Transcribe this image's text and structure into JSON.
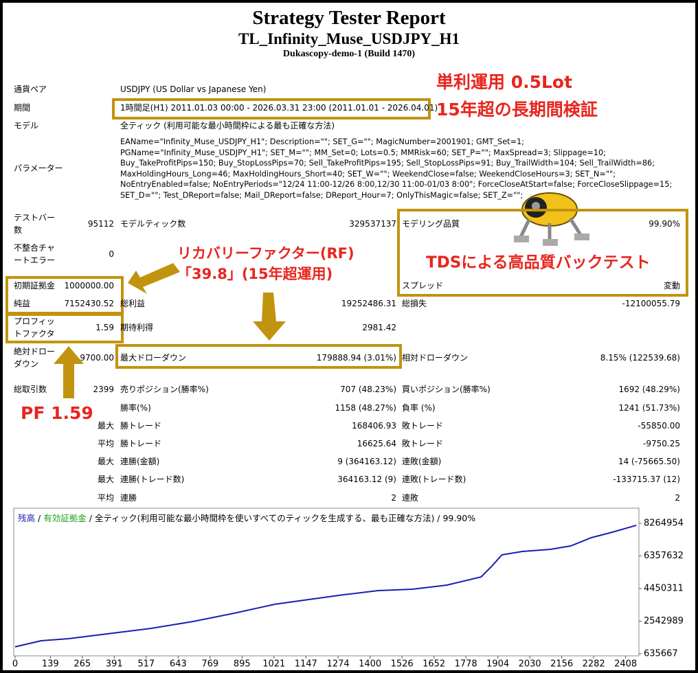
{
  "header": {
    "title": "Strategy Tester Report",
    "subtitle": "TL_Infinity_Muse_USDJPY_H1",
    "server": "Dukascopy-demo-1 (Build 1470)"
  },
  "report": {
    "rows": [
      {
        "label": "通貨ペア",
        "label2": "USDJPY (US Dollar vs Japanese Yen)"
      },
      {
        "label": "期間",
        "label2": "1時間足(H1) 2011.01.03 00:00 - 2026.03.31 23:00 (2011.01.01 - 2026.04.01)"
      },
      {
        "label": "モデル",
        "label2": "全ティック (利用可能な最小時間枠による最も正確な方法)"
      },
      {
        "label": "テストバー数",
        "value": "95112",
        "label2": "モデルティック数",
        "value2": "329537137",
        "label3": "モデリング品質",
        "value3": "99.90%"
      },
      {
        "label": "不整合チャートエラー",
        "value": "0"
      },
      {
        "label": "初期証拠金",
        "value": "1000000.00",
        "label3": "スプレッド",
        "value3": "変動"
      },
      {
        "label": "純益",
        "value": "7152430.52",
        "label2": "総利益",
        "value2": "19252486.31",
        "label3": "総損失",
        "value3": "-12100055.79"
      },
      {
        "label": "プロフィットファクタ",
        "value": "1.59",
        "label2": "期待利得",
        "value2": "2981.42"
      },
      {
        "label": "絶対ドローダウン",
        "value": "9700.00",
        "label2": "最大ドローダウン",
        "value2": "179888.94 (3.01%)",
        "label3": "相対ドローダウン",
        "value3": "8.15% (122539.68)"
      },
      {
        "label": "総取引数",
        "value": "2399",
        "label2": "売りポジション(勝率%)",
        "value2": "707 (48.23%)",
        "label3": "買いポジション(勝率%)",
        "value3": "1692 (48.29%)"
      },
      {
        "label2": "勝率(%)",
        "value2": "1158 (48.27%)",
        "label3": "負率 (%)",
        "value3": "1241 (51.73%)"
      },
      {
        "value": "最大",
        "label2": "勝トレード",
        "value2": "168406.93",
        "label3": "敗トレード",
        "value3": "-55850.00"
      },
      {
        "value": "平均",
        "label2": "勝トレード",
        "value2": "16625.64",
        "label3": "敗トレード",
        "value3": "-9750.25"
      },
      {
        "value": "最大",
        "label2": "連勝(金額)",
        "value2": "9 (364163.12)",
        "label3": "連敗(金額)",
        "value3": "14 (-75665.50)"
      },
      {
        "value": "最大",
        "label2": "連勝(トレード数)",
        "value2": "364163.12 (9)",
        "label3": "連敗(トレード数)",
        "value3": "-133715.37 (12)"
      },
      {
        "value": "平均",
        "label2": "連勝",
        "value2": "2",
        "label3": "連敗",
        "value3": "2"
      }
    ],
    "parameters": {
      "label": "パラメーター",
      "lines": [
        "EAName=\"Infinity_Muse_USDJPY_H1\"; Description=\"\"; SET_G=\"\"; MagicNumber=2001901; GMT_Set=1;",
        "PGName=\"Infinity_Muse_USDJPY_H1\"; SET_M=\"\"; MM_Set=0; Lots=0.5; MMRisk=60; SET_P=\"\"; MaxSpread=3; Slippage=10;",
        "Buy_TakeProfitPips=150; Buy_StopLossPips=70; Sell_TakeProfitPips=195; Sell_StopLossPips=91; Buy_TrailWidth=104; Sell_TrailWidth=86;",
        "MaxHoldingHours_Long=46; MaxHoldingHours_Short=40; SET_W=\"\"; WeekendClose=false; WeekendCloseHours=3; SET_N=\"\";",
        "NoEntryEnabled=false; NoEntryPeriods=\"12/24 11:00-12/26 8:00,12/30 11:00-01/03 8:00\"; ForceCloseAtStart=false; ForceCloseSlippage=15;",
        "SET_D=\"\"; Test_DReport=false; Mail_DReport=false; DReport_Hour=7; OnlyThisMagic=false; SET_Z=\"\";"
      ]
    }
  },
  "annotations": {
    "color": "#e8251e",
    "box_color": "#c1930f",
    "lot": "単利運用 0.5Lot",
    "period": "15年超の長期間検証",
    "rf_title": "リカバリーファクター(RF)",
    "rf_value": "「39.8」(15年超運用)",
    "tds": "TDSによる高品質バックテスト",
    "pf": "PF 1.59"
  },
  "chart_data": {
    "type": "line",
    "legend_extra": [
      "/",
      "有効証拠金",
      "/ 全ティック(利用可能な最小時間枠を使いすべてのティックを生成する、最も正確な方法) / 99.90%"
    ],
    "legend_extra_colors": [
      "#000000",
      "#1e9e1e",
      "#000000"
    ],
    "x": [
      0,
      103,
      211,
      320,
      428,
      537,
      700,
      862,
      1025,
      1161,
      1296,
      1432,
      1567,
      1703,
      1838,
      1879,
      1920,
      2001,
      2110,
      2191,
      2272,
      2354,
      2450
    ],
    "series": [
      {
        "name": "残高",
        "color": "#1c1cb4",
        "values": [
          1040000,
          1400000,
          1519000,
          1720000,
          1920000,
          2120000,
          2520000,
          3000000,
          3530000,
          3810000,
          4090000,
          4330000,
          4410000,
          4650000,
          5130000,
          5740000,
          6420000,
          6620000,
          6740000,
          6940000,
          7420000,
          7740000,
          8150000
        ]
      }
    ],
    "xlim": [
      0,
      2455
    ],
    "xticks": [
      0,
      139,
      265,
      391,
      517,
      643,
      769,
      895,
      1021,
      1147,
      1274,
      1400,
      1526,
      1652,
      1778,
      1904,
      2030,
      2156,
      2282,
      2408
    ],
    "ylim": [
      515000,
      9068000
    ],
    "yticks": [
      635667,
      2542989,
      4450311,
      6357632,
      8264954
    ],
    "grid": false
  }
}
